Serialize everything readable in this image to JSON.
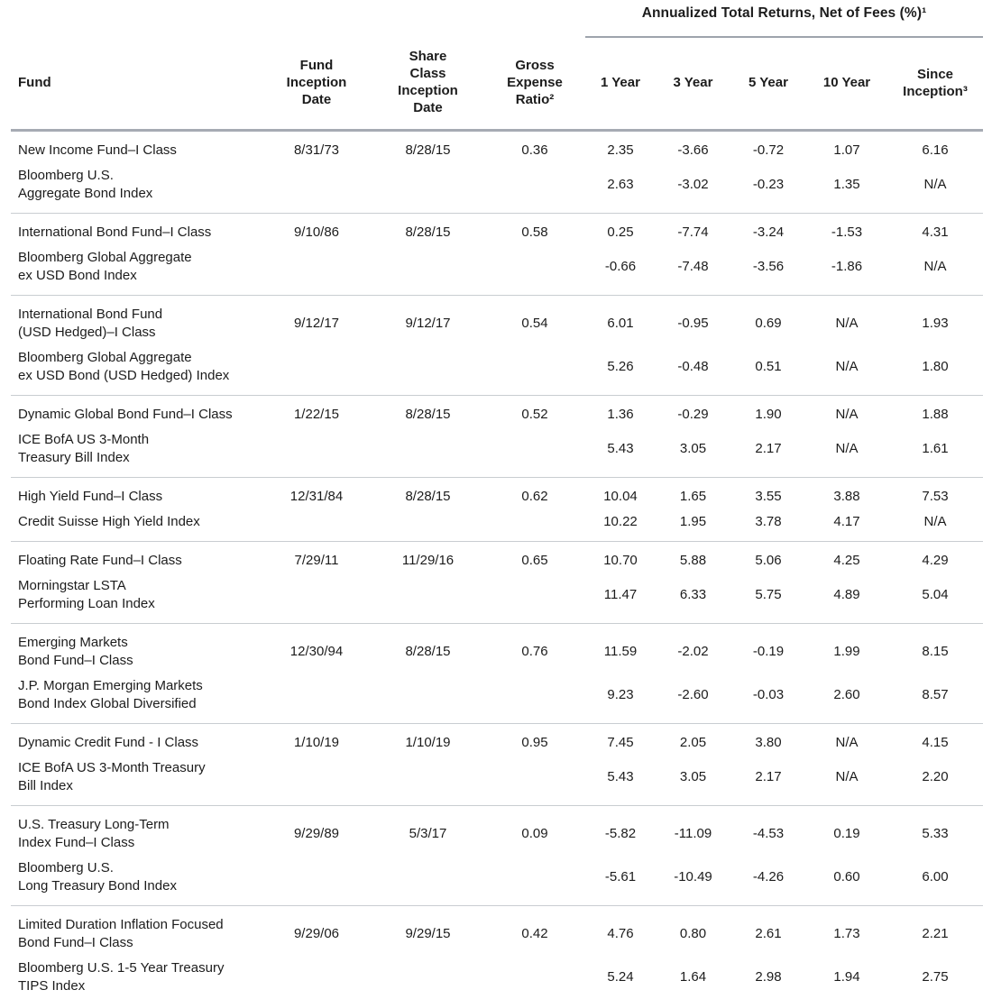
{
  "banner": {
    "title": "Annualized Total Returns, Net of Fees (%)¹"
  },
  "columns": [
    "Fund",
    "Fund\nInception\nDate",
    "Share\nClass\nInception\nDate",
    "Gross\nExpense\nRatio²",
    "1 Year",
    "3 Year",
    "5 Year",
    "10 Year",
    "Since\nInception³"
  ],
  "groups": [
    {
      "fund": {
        "name": "New Income Fund–I Class",
        "fund_inception": "8/31/73",
        "share_class_inception": "8/28/15",
        "gross_expense_ratio": "0.36",
        "returns": [
          "2.35",
          "-3.66",
          "-0.72",
          "1.07",
          "6.16"
        ]
      },
      "benchmark": {
        "name": "Bloomberg U.S.\nAggregate Bond Index",
        "returns": [
          "2.63",
          "-3.02",
          "-0.23",
          "1.35",
          "N/A"
        ]
      }
    },
    {
      "fund": {
        "name": "International Bond Fund–I Class",
        "fund_inception": "9/10/86",
        "share_class_inception": "8/28/15",
        "gross_expense_ratio": "0.58",
        "returns": [
          "0.25",
          "-7.74",
          "-3.24",
          "-1.53",
          "4.31"
        ]
      },
      "benchmark": {
        "name": "Bloomberg Global Aggregate\nex USD Bond Index",
        "returns": [
          "-0.66",
          "-7.48",
          "-3.56",
          "-1.86",
          "N/A"
        ]
      }
    },
    {
      "fund": {
        "name": "International Bond Fund\n(USD Hedged)–I Class",
        "fund_inception": "9/12/17",
        "share_class_inception": "9/12/17",
        "gross_expense_ratio": "0.54",
        "returns": [
          "6.01",
          "-0.95",
          "0.69",
          "N/A",
          "1.93"
        ]
      },
      "benchmark": {
        "name": "Bloomberg Global Aggregate\nex USD Bond (USD Hedged) Index",
        "returns": [
          "5.26",
          "-0.48",
          "0.51",
          "N/A",
          "1.80"
        ]
      }
    },
    {
      "fund": {
        "name": "Dynamic Global Bond Fund–I Class",
        "fund_inception": "1/22/15",
        "share_class_inception": "8/28/15",
        "gross_expense_ratio": "0.52",
        "returns": [
          "1.36",
          "-0.29",
          "1.90",
          "N/A",
          "1.88"
        ]
      },
      "benchmark": {
        "name": "ICE BofA US 3-Month\nTreasury Bill Index",
        "returns": [
          "5.43",
          "3.05",
          "2.17",
          "N/A",
          "1.61"
        ]
      }
    },
    {
      "fund": {
        "name": "High Yield Fund–I Class",
        "fund_inception": "12/31/84",
        "share_class_inception": "8/28/15",
        "gross_expense_ratio": "0.62",
        "returns": [
          "10.04",
          "1.65",
          "3.55",
          "3.88",
          "7.53"
        ]
      },
      "benchmark": {
        "name": "Credit Suisse High Yield Index",
        "returns": [
          "10.22",
          "1.95",
          "3.78",
          "4.17",
          "N/A"
        ]
      }
    },
    {
      "fund": {
        "name": "Floating Rate Fund–I Class",
        "fund_inception": "7/29/11",
        "share_class_inception": "11/29/16",
        "gross_expense_ratio": "0.65",
        "returns": [
          "10.70",
          "5.88",
          "5.06",
          "4.25",
          "4.29"
        ]
      },
      "benchmark": {
        "name": "Morningstar LSTA\nPerforming Loan Index",
        "returns": [
          "11.47",
          "6.33",
          "5.75",
          "4.89",
          "5.04"
        ]
      }
    },
    {
      "fund": {
        "name": "Emerging Markets\nBond Fund–I Class",
        "fund_inception": "12/30/94",
        "share_class_inception": "8/28/15",
        "gross_expense_ratio": "0.76",
        "returns": [
          "11.59",
          "-2.02",
          "-0.19",
          "1.99",
          "8.15"
        ]
      },
      "benchmark": {
        "name": "J.P. Morgan Emerging Markets\nBond Index Global Diversified",
        "returns": [
          "9.23",
          "-2.60",
          "-0.03",
          "2.60",
          "8.57"
        ]
      }
    },
    {
      "fund": {
        "name": "Dynamic Credit Fund - I Class",
        "fund_inception": "1/10/19",
        "share_class_inception": "1/10/19",
        "gross_expense_ratio": "0.95",
        "returns": [
          "7.45",
          "2.05",
          "3.80",
          "N/A",
          "4.15"
        ]
      },
      "benchmark": {
        "name": "ICE BofA US 3-Month Treasury\nBill Index",
        "returns": [
          "5.43",
          "3.05",
          "2.17",
          "N/A",
          "2.20"
        ]
      }
    },
    {
      "fund": {
        "name": "U.S. Treasury Long-Term\nIndex Fund–I Class",
        "fund_inception": "9/29/89",
        "share_class_inception": "5/3/17",
        "gross_expense_ratio": "0.09",
        "returns": [
          "-5.82",
          "-11.09",
          "-4.53",
          "0.19",
          "5.33"
        ]
      },
      "benchmark": {
        "name": "Bloomberg U.S.\nLong Treasury Bond Index",
        "returns": [
          "-5.61",
          "-10.49",
          "-4.26",
          "0.60",
          "6.00"
        ]
      }
    },
    {
      "fund": {
        "name": "Limited Duration Inflation Focused\nBond Fund–I Class",
        "fund_inception": "9/29/06",
        "share_class_inception": "9/29/15",
        "gross_expense_ratio": "0.42",
        "returns": [
          "4.76",
          "0.80",
          "2.61",
          "1.73",
          "2.21"
        ]
      },
      "benchmark": {
        "name": "Bloomberg U.S. 1-5 Year Treasury\nTIPS Index",
        "returns": [
          "5.24",
          "1.64",
          "2.98",
          "1.94",
          "2.75"
        ]
      }
    }
  ]
}
